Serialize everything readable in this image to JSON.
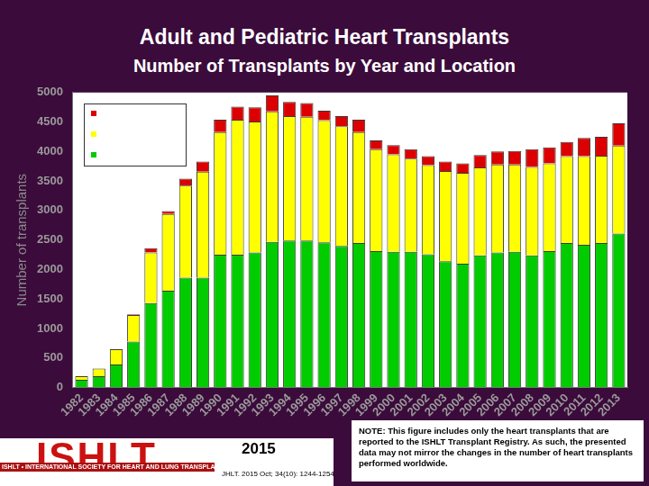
{
  "chart_data": {
    "type": "bar",
    "title": "Adult and Pediatric Heart Transplants",
    "subtitle": "Number of Transplants by Year and Location",
    "y_label": "Number of transplants",
    "categories": [
      "1982",
      "1983",
      "1984",
      "1985",
      "1986",
      "1987",
      "1988",
      "1989",
      "1990",
      "1991",
      "1992",
      "1993",
      "1994",
      "1995",
      "1996",
      "1997",
      "1998",
      "1999",
      "2000",
      "2001",
      "2002",
      "2003",
      "2004",
      "2005",
      "2006",
      "2007",
      "2008",
      "2009",
      "2010",
      "2011",
      "2012",
      "2013"
    ],
    "series": [
      {
        "color": "#00cc00",
        "values": [
          130,
          190,
          390,
          780,
          1430,
          1640,
          1860,
          1860,
          2250,
          2250,
          2290,
          2470,
          2490,
          2490,
          2460,
          2400,
          2450,
          2310,
          2300,
          2300,
          2260,
          2140,
          2100,
          2240,
          2290,
          2300,
          2240,
          2310,
          2450,
          2420,
          2450,
          2610
        ]
      },
      {
        "color": "#ffff00",
        "values": [
          60,
          130,
          260,
          450,
          860,
          1300,
          1560,
          1800,
          2080,
          2290,
          2220,
          2210,
          2110,
          2100,
          2070,
          2030,
          1880,
          1730,
          1650,
          1580,
          1510,
          1530,
          1540,
          1490,
          1490,
          1480,
          1500,
          1490,
          1470,
          1500,
          1480,
          1490
        ]
      },
      {
        "color": "#dd0000",
        "values": [
          0,
          0,
          0,
          10,
          70,
          50,
          120,
          170,
          210,
          220,
          240,
          270,
          240,
          230,
          160,
          170,
          210,
          150,
          160,
          160,
          150,
          160,
          160,
          210,
          220,
          230,
          300,
          270,
          240,
          310,
          320,
          380
        ]
      }
    ],
    "ylim": [
      0,
      5000
    ],
    "yticks": [
      0,
      500,
      1000,
      1500,
      2000,
      2500,
      3000,
      3500,
      4000,
      4500,
      5000
    ],
    "stacked": true,
    "grid": false,
    "legend": "upper left"
  },
  "footer": {
    "logo": "ISHLT",
    "banner": "ISHLT • INTERNATIONAL SOCIETY FOR HEART AND LUNG TRANSPLANTATION",
    "year": "2015",
    "citation": "JHLT. 2015 Oct; 34(10): 1244-1254"
  },
  "note": "NOTE: This figure includes only the heart transplants that are reported to the ISHLT Transplant Registry. As such, the presented data may not mirror the changes in the number of heart transplants performed worldwide."
}
